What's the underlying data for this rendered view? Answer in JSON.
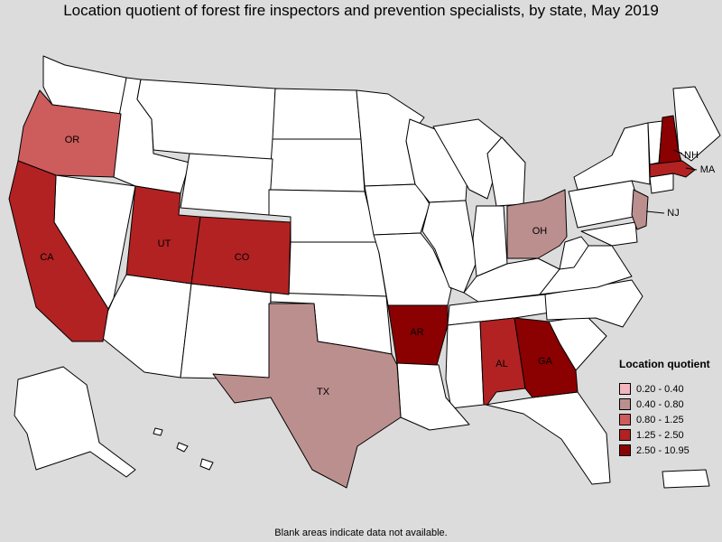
{
  "title": "Location quotient of forest fire inspectors and prevention specialists, by state, May 2019",
  "footnote": "Blank areas indicate data not available.",
  "legend": {
    "title": "Location quotient",
    "items": [
      {
        "label": "0.20 - 0.40",
        "color": "#f4b6be"
      },
      {
        "label": "0.40 - 0.80",
        "color": "#bc8f8f"
      },
      {
        "label": "0.80 - 1.25",
        "color": "#cd5c5c"
      },
      {
        "label": "1.25 - 2.50",
        "color": "#b22222"
      },
      {
        "label": "2.50 - 10.95",
        "color": "#8b0000"
      }
    ]
  },
  "colors": {
    "blank": "#ffffff",
    "background": "#dcdcdc",
    "border": "#000000"
  },
  "states": {
    "OR": {
      "label": "OR",
      "class": "0.80 - 1.25"
    },
    "CA": {
      "label": "CA",
      "class": "1.25 - 2.50"
    },
    "UT": {
      "label": "UT",
      "class": "1.25 - 2.50"
    },
    "CO": {
      "label": "CO",
      "class": "1.25 - 2.50"
    },
    "TX": {
      "label": "TX",
      "class": "0.40 - 0.80"
    },
    "AR": {
      "label": "AR",
      "class": "2.50 - 10.95"
    },
    "AL": {
      "label": "AL",
      "class": "1.25 - 2.50"
    },
    "GA": {
      "label": "GA",
      "class": "2.50 - 10.95"
    },
    "OH": {
      "label": "OH",
      "class": "0.40 - 0.80"
    },
    "NJ": {
      "label": "NJ",
      "class": "0.40 - 0.80"
    },
    "NH": {
      "label": "NH",
      "class": "2.50 - 10.95"
    },
    "MA": {
      "label": "MA",
      "class": "1.25 - 2.50"
    }
  }
}
